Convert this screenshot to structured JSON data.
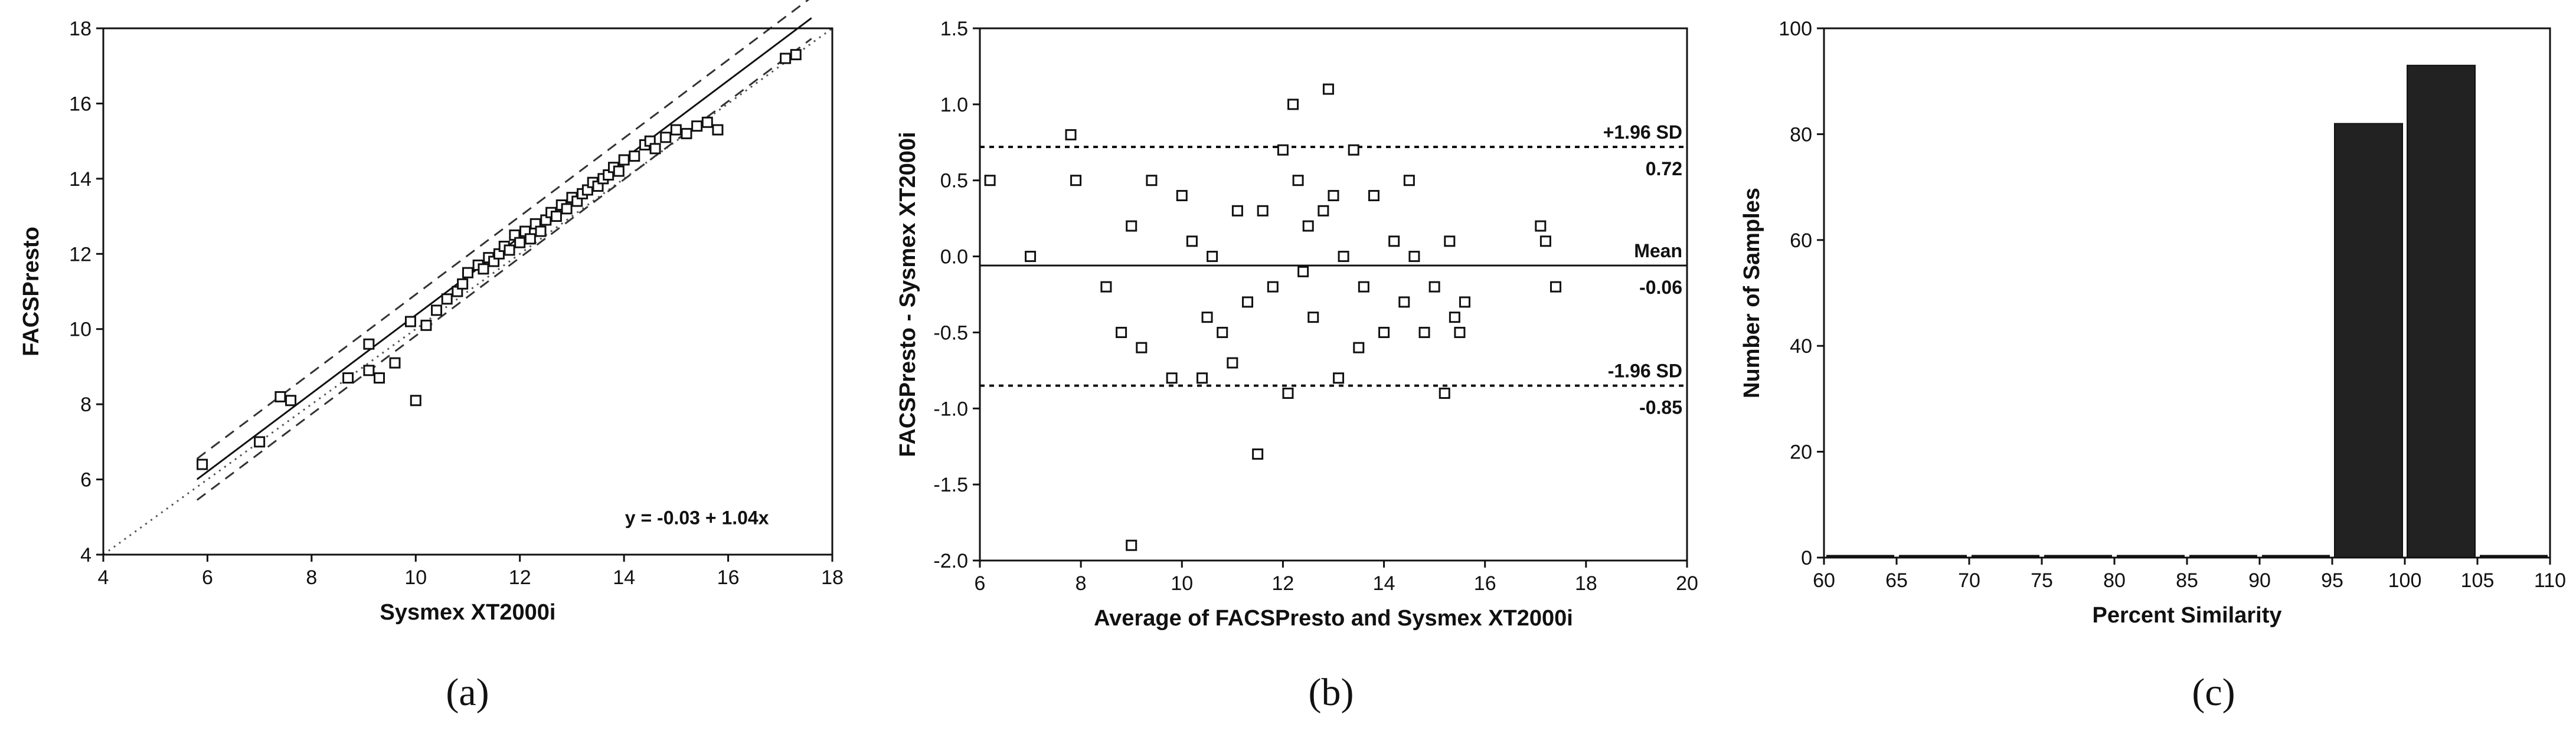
{
  "chart_data": [
    {
      "panel_label": "(a)",
      "type": "scatter",
      "xlabel": "Sysmex XT2000i",
      "ylabel": "FACSPresto",
      "xlim": [
        4,
        18
      ],
      "ylim": [
        4,
        18
      ],
      "xticks": [
        "4",
        "6",
        "8",
        "10",
        "12",
        "14",
        "16",
        "18"
      ],
      "yticks": [
        "4",
        "6",
        "8",
        "10",
        "12",
        "14",
        "16",
        "18"
      ],
      "equation": "y = -0.03 + 1.04x",
      "fit": {
        "intercept": -0.03,
        "slope": 1.04
      },
      "confidence_band": 0.55,
      "identity_line": true,
      "x": [
        5.9,
        7.0,
        7.4,
        7.6,
        8.7,
        9.1,
        9.1,
        9.3,
        9.6,
        9.9,
        10.0,
        10.2,
        10.4,
        10.6,
        10.8,
        10.9,
        11.0,
        11.2,
        11.3,
        11.4,
        11.5,
        11.6,
        11.7,
        11.8,
        11.9,
        12.0,
        12.1,
        12.2,
        12.3,
        12.4,
        12.5,
        12.6,
        12.7,
        12.8,
        12.9,
        13.0,
        13.1,
        13.2,
        13.3,
        13.4,
        13.5,
        13.6,
        13.7,
        13.8,
        13.9,
        14.0,
        14.2,
        14.4,
        14.5,
        14.6,
        14.8,
        15.0,
        15.2,
        15.4,
        15.6,
        15.8,
        17.1,
        17.3
      ],
      "y": [
        6.4,
        7.0,
        8.2,
        8.1,
        8.7,
        9.6,
        8.9,
        8.7,
        9.1,
        10.2,
        8.1,
        10.1,
        10.5,
        10.8,
        11.0,
        11.2,
        11.5,
        11.7,
        11.6,
        11.9,
        11.8,
        12.0,
        12.2,
        12.1,
        12.5,
        12.3,
        12.6,
        12.4,
        12.8,
        12.6,
        12.9,
        13.1,
        13.0,
        13.3,
        13.2,
        13.5,
        13.4,
        13.6,
        13.7,
        13.9,
        13.8,
        14.0,
        14.1,
        14.3,
        14.2,
        14.5,
        14.6,
        14.9,
        15.0,
        14.8,
        15.1,
        15.3,
        15.2,
        15.4,
        15.5,
        15.3,
        17.2,
        17.3
      ]
    },
    {
      "panel_label": "(b)",
      "type": "scatter",
      "xlabel": "Average of FACSPresto and Sysmex XT2000i",
      "ylabel": "FACSPresto - Sysmex XT2000i",
      "xlim": [
        6,
        20
      ],
      "ylim": [
        -2.0,
        1.5
      ],
      "xticks": [
        "6",
        "8",
        "10",
        "12",
        "14",
        "16",
        "18",
        "20"
      ],
      "yticks": [
        "-2.0",
        "-1.5",
        "-1.0",
        "-0.5",
        "0.0",
        "0.5",
        "1.0",
        "1.5"
      ],
      "mean": -0.06,
      "upper_loa": 0.72,
      "lower_loa": -0.85,
      "annotations": {
        "upper_label": "+1.96 SD",
        "upper_value": "0.72",
        "mean_label": "Mean",
        "mean_value": "-0.06",
        "lower_label": "-1.96 SD",
        "lower_value": "-0.85"
      },
      "x": [
        6.2,
        7.0,
        7.8,
        7.9,
        8.5,
        8.8,
        9.0,
        9.0,
        9.2,
        9.4,
        9.8,
        10.0,
        10.2,
        10.4,
        10.5,
        10.6,
        10.8,
        11.0,
        11.1,
        11.3,
        11.5,
        11.6,
        11.8,
        12.0,
        12.1,
        12.2,
        12.3,
        12.4,
        12.5,
        12.6,
        12.8,
        12.9,
        13.0,
        13.1,
        13.2,
        13.4,
        13.5,
        13.6,
        13.8,
        14.0,
        14.2,
        14.4,
        14.5,
        14.6,
        14.8,
        15.0,
        15.2,
        15.3,
        15.4,
        15.5,
        15.6,
        17.1,
        17.2,
        17.4
      ],
      "y": [
        0.5,
        0.0,
        0.8,
        0.5,
        -0.2,
        -0.5,
        -1.9,
        0.2,
        -0.6,
        0.5,
        -0.8,
        0.4,
        0.1,
        -0.8,
        -0.4,
        0.0,
        -0.5,
        -0.7,
        0.3,
        -0.3,
        -1.3,
        0.3,
        -0.2,
        0.7,
        -0.9,
        1.0,
        0.5,
        -0.1,
        0.2,
        -0.4,
        0.3,
        1.1,
        0.4,
        -0.8,
        0.0,
        0.7,
        -0.6,
        -0.2,
        0.4,
        -0.5,
        0.1,
        -0.3,
        0.5,
        0.0,
        -0.5,
        -0.2,
        -0.9,
        0.1,
        -0.4,
        -0.5,
        -0.3,
        0.2,
        0.1,
        -0.2
      ]
    },
    {
      "panel_label": "(c)",
      "type": "bar",
      "xlabel": "Percent Similarity",
      "ylabel": "Number of Samples",
      "xlim": [
        60,
        110
      ],
      "ylim": [
        0,
        100
      ],
      "xticks": [
        "60",
        "65",
        "70",
        "75",
        "80",
        "85",
        "90",
        "95",
        "100",
        "105",
        "110"
      ],
      "yticks": [
        "0",
        "20",
        "40",
        "60",
        "80",
        "100"
      ],
      "bin_width": 5,
      "bins": [
        {
          "start": 60,
          "count": 0
        },
        {
          "start": 65,
          "count": 0
        },
        {
          "start": 70,
          "count": 0
        },
        {
          "start": 75,
          "count": 0
        },
        {
          "start": 80,
          "count": 0
        },
        {
          "start": 85,
          "count": 0
        },
        {
          "start": 90,
          "count": 0
        },
        {
          "start": 95,
          "count": 82
        },
        {
          "start": 100,
          "count": 93
        },
        {
          "start": 105,
          "count": 0
        }
      ]
    }
  ]
}
